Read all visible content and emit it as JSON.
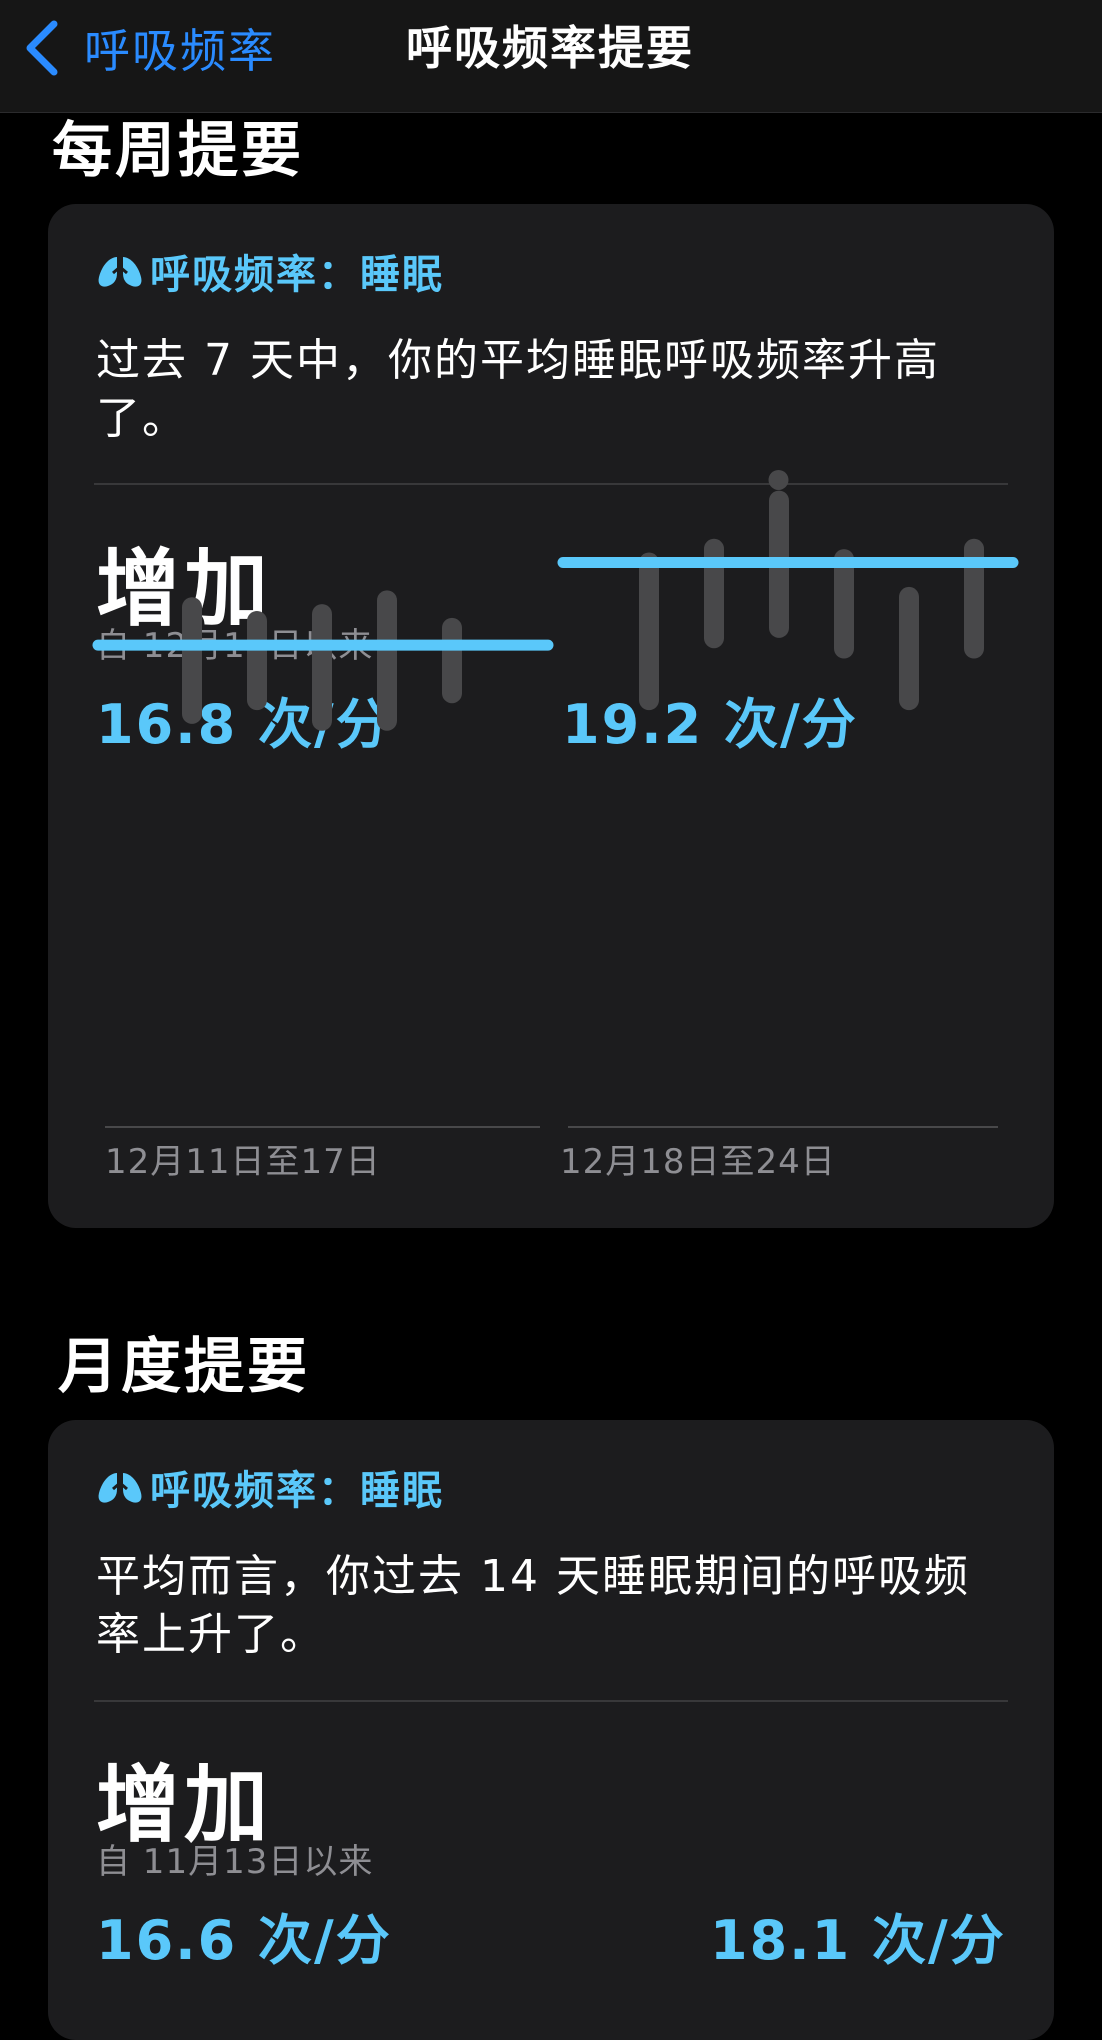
{
  "nav": {
    "back_label": "呼吸频率",
    "title": "呼吸频率提要"
  },
  "weekly": {
    "section_title": "每周提要",
    "card": {
      "header": "呼吸频率：睡眠",
      "header_icon": "lungs-icon",
      "message": "过去 7 天中，你的平均睡眠呼吸频率升高了。",
      "trend": "增加",
      "since": "自 12月11日以来",
      "stat_left": "16.8 次/分",
      "stat_right": "19.2 次/分",
      "period_left": "12月11日至17日",
      "period_right": "12月18日至24日"
    }
  },
  "monthly": {
    "section_title": "月度提要",
    "card": {
      "header": "呼吸频率：睡眠",
      "header_icon": "lungs-icon",
      "message": "平均而言，你过去 14 天睡眠期间的呼吸频率上升了。",
      "trend": "增加",
      "since": "自 11月13日以来",
      "stat_left": "16.6 次/分",
      "stat_right": "18.1 次/分"
    }
  },
  "chart_data": {
    "type": "bar",
    "unit": "次/分",
    "colors": {
      "range_bar": "#48484a",
      "average": "#5ac8fa"
    },
    "periods": [
      {
        "label": "12月11日至17日",
        "average": 16.8,
        "ranges": [
          [
            14.8,
            17.9
          ],
          [
            15.2,
            17.5
          ],
          [
            14.6,
            17.7
          ],
          [
            14.6,
            18.1
          ],
          [
            15.4,
            17.3
          ]
        ]
      },
      {
        "label": "12月18日至24日",
        "average": 19.2,
        "ranges": [
          [
            15.2,
            19.2
          ],
          [
            17.0,
            19.6
          ],
          [
            17.3,
            21.0
          ],
          [
            16.7,
            19.3
          ],
          [
            15.2,
            18.2
          ],
          [
            16.7,
            19.6
          ]
        ],
        "dot": 21.6
      }
    ]
  }
}
